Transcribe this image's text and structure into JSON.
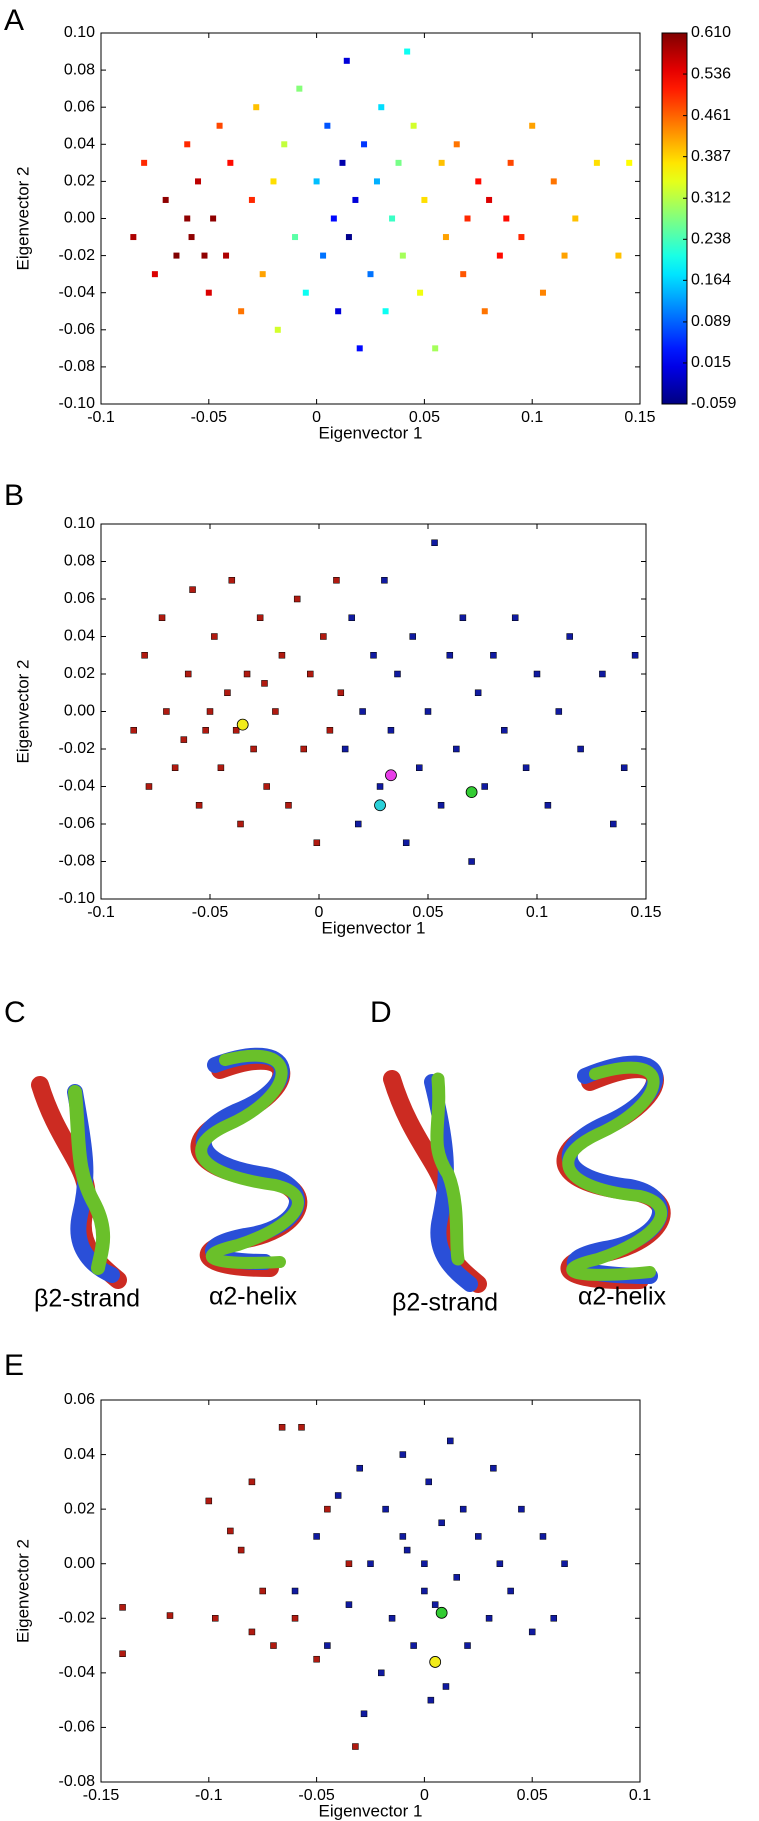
{
  "chart_data": [
    {
      "type": "scatter",
      "panel_label": "A",
      "xlabel": "Eigenvector 1",
      "ylabel": "Eigenvector 2",
      "xlim": [
        -0.1,
        0.15
      ],
      "ylim": [
        -0.1,
        0.1
      ],
      "xticks": [
        -0.1,
        -0.05,
        0,
        0.05,
        0.1,
        0.15
      ],
      "yticks": [
        {
          "value": 0.1,
          "label": "0.10"
        },
        {
          "value": 0.08,
          "label": "0.08"
        },
        {
          "value": 0.06,
          "label": "0.06"
        },
        {
          "value": 0.04,
          "label": "0.04"
        },
        {
          "value": 0.02,
          "label": "0.02"
        },
        {
          "value": 0,
          "label": "0.00"
        },
        {
          "value": -0.02,
          "label": "-0.02"
        },
        {
          "value": -0.04,
          "label": "-0.04"
        },
        {
          "value": -0.06,
          "label": "-0.06"
        },
        {
          "value": -0.08,
          "label": "-0.08"
        },
        {
          "value": -0.1,
          "label": "-0.10"
        }
      ],
      "colormap": "jet",
      "clim": [
        -0.059,
        0.61
      ],
      "cticks": [
        {
          "value": 0.61,
          "label": "0.610"
        },
        0.536,
        0.461,
        0.387,
        0.312,
        0.238,
        0.164,
        0.089,
        0.015,
        -0.059
      ],
      "series": [
        {
          "marker": "square",
          "x": [
            -0.085,
            -0.08,
            -0.075,
            -0.07,
            -0.065,
            -0.06,
            -0.058,
            -0.055,
            -0.05,
            -0.048,
            -0.045,
            -0.042,
            -0.04,
            -0.035,
            -0.03,
            -0.028,
            -0.025,
            -0.02,
            -0.018,
            -0.015,
            -0.01,
            -0.008,
            -0.005,
            0,
            0.003,
            0.005,
            0.008,
            0.01,
            0.012,
            0.014,
            0.015,
            0.018,
            0.02,
            0.022,
            0.025,
            0.028,
            0.03,
            0.032,
            0.035,
            0.038,
            0.04,
            0.042,
            0.045,
            0.048,
            0.05,
            0.055,
            0.058,
            0.06,
            0.065,
            0.068,
            0.07,
            0.075,
            0.078,
            0.08,
            0.085,
            0.09,
            0.095,
            0.1,
            0.105,
            0.11,
            0.115,
            0.12,
            0.13,
            0.14,
            0.145,
            -0.052,
            -0.06,
            0.088
          ],
          "values": [
            -0.01,
            0.03,
            -0.03,
            0.01,
            -0.02,
            0.04,
            -0.01,
            0.02,
            -0.04,
            0,
            0.05,
            -0.02,
            0.03,
            -0.05,
            0.01,
            0.06,
            -0.03,
            0.02,
            -0.06,
            0.04,
            -0.01,
            0.07,
            -0.04,
            0.02,
            -0.02,
            0.05,
            0,
            -0.05,
            0.03,
            0.085,
            -0.01,
            0.01,
            -0.07,
            0.04,
            -0.03,
            0.02,
            0.06,
            -0.05,
            0,
            0.03,
            -0.02,
            0.09,
            0.05,
            -0.04,
            0.01,
            -0.07,
            0.03,
            -0.01,
            0.04,
            -0.03,
            0,
            0.02,
            -0.05,
            0.01,
            -0.02,
            0.03,
            -0.01,
            0.05,
            -0.04,
            0.02,
            -0.02,
            0,
            0.03,
            -0.02,
            0.03,
            -0.02,
            0,
            0
          ],
          "colors": [
            0.58,
            0.5,
            0.55,
            0.6,
            0.61,
            0.5,
            0.6,
            0.57,
            0.55,
            0.6,
            0.48,
            0.58,
            0.52,
            0.45,
            0.5,
            0.4,
            0.42,
            0.38,
            0.33,
            0.32,
            0.25,
            0.28,
            0.2,
            0.15,
            0.1,
            0.08,
            0.03,
            0,
            -0.03,
            0,
            -0.05,
            0,
            0.03,
            0.06,
            0.1,
            0.14,
            0.17,
            0.2,
            0.23,
            0.27,
            0.3,
            0.2,
            0.33,
            0.35,
            0.38,
            0.3,
            0.4,
            0.42,
            0.45,
            0.47,
            0.5,
            0.52,
            0.45,
            0.55,
            0.52,
            0.48,
            0.5,
            0.42,
            0.44,
            0.45,
            0.42,
            0.4,
            0.38,
            0.4,
            0.36,
            0.6,
            0.6,
            0.52
          ]
        }
      ]
    },
    {
      "type": "scatter",
      "panel_label": "B",
      "xlabel": "Eigenvector 1",
      "ylabel": "Eigenvector 2",
      "xlim": [
        -0.1,
        0.15
      ],
      "ylim": [
        -0.1,
        0.1
      ],
      "xticks": [
        -0.1,
        -0.05,
        0,
        0.05,
        0.1,
        0.15
      ],
      "yticks": [
        {
          "value": 0.1,
          "label": "0.10"
        },
        {
          "value": 0.08,
          "label": "0.08"
        },
        {
          "value": 0.06,
          "label": "0.06"
        },
        {
          "value": 0.04,
          "label": "0.04"
        },
        {
          "value": 0.02,
          "label": "0.02"
        },
        {
          "value": 0,
          "label": "0.00"
        },
        {
          "value": -0.02,
          "label": "-0.02"
        },
        {
          "value": -0.04,
          "label": "-0.04"
        },
        {
          "value": -0.06,
          "label": "-0.06"
        },
        {
          "value": -0.08,
          "label": "-0.08"
        },
        {
          "value": -0.1,
          "label": "-0.10"
        }
      ],
      "series": [
        {
          "marker": "square",
          "color": "#b01a10",
          "x": [
            -0.085,
            -0.08,
            -0.078,
            -0.072,
            -0.07,
            -0.066,
            -0.06,
            -0.058,
            -0.055,
            -0.052,
            -0.048,
            -0.045,
            -0.042,
            -0.04,
            -0.036,
            -0.033,
            -0.03,
            -0.027,
            -0.024,
            -0.02,
            -0.017,
            -0.014,
            -0.01,
            -0.007,
            -0.004,
            -0.001,
            0.002,
            0.005,
            0.008,
            0.01,
            -0.05,
            -0.062,
            -0.038,
            -0.025
          ],
          "values": [
            -0.01,
            0.03,
            -0.04,
            0.05,
            0,
            -0.03,
            0.02,
            0.065,
            -0.05,
            -0.01,
            0.04,
            -0.03,
            0.01,
            0.07,
            -0.06,
            0.02,
            -0.02,
            0.05,
            -0.04,
            0,
            0.03,
            -0.05,
            0.06,
            -0.02,
            0.02,
            -0.07,
            0.04,
            -0.01,
            0.07,
            0.01,
            0,
            -0.015,
            -0.01,
            0.015
          ]
        },
        {
          "marker": "square",
          "color": "#101aa0",
          "x": [
            0.012,
            0.015,
            0.018,
            0.02,
            0.025,
            0.028,
            0.03,
            0.033,
            0.036,
            0.04,
            0.043,
            0.046,
            0.05,
            0.053,
            0.056,
            0.06,
            0.063,
            0.066,
            0.07,
            0.073,
            0.076,
            0.08,
            0.085,
            0.09,
            0.095,
            0.1,
            0.105,
            0.11,
            0.115,
            0.12,
            0.13,
            0.14,
            0.145,
            0.135
          ],
          "values": [
            -0.02,
            0.05,
            -0.06,
            0,
            0.03,
            -0.04,
            0.07,
            -0.01,
            0.02,
            -0.07,
            0.04,
            -0.03,
            0,
            0.09,
            -0.05,
            0.03,
            -0.02,
            0.05,
            -0.08,
            0.01,
            -0.04,
            0.03,
            -0.01,
            0.05,
            -0.03,
            0.02,
            -0.05,
            0,
            0.04,
            -0.02,
            0.02,
            -0.03,
            0.03,
            -0.06
          ]
        },
        {
          "marker": "circle",
          "color": "#f2ec1a",
          "x": [
            -0.035
          ],
          "values": [
            -0.007
          ]
        },
        {
          "marker": "circle",
          "color": "#e83ee8",
          "x": [
            0.033
          ],
          "values": [
            -0.034
          ]
        },
        {
          "marker": "circle",
          "color": "#2ad0d8",
          "x": [
            0.028
          ],
          "values": [
            -0.05
          ]
        },
        {
          "marker": "circle",
          "color": "#33cc33",
          "x": [
            0.07
          ],
          "values": [
            -0.043
          ]
        }
      ]
    },
    {
      "type": "scatter",
      "panel_label": "E",
      "xlabel": "Eigenvector 1",
      "ylabel": "Eigenvector 2",
      "xlim": [
        -0.15,
        0.1
      ],
      "ylim": [
        -0.08,
        0.06
      ],
      "xticks": [
        -0.15,
        -0.1,
        -0.05,
        0,
        0.05,
        0.1
      ],
      "yticks": [
        {
          "value": 0.06,
          "label": "0.06"
        },
        {
          "value": 0.04,
          "label": "0.04"
        },
        {
          "value": 0.02,
          "label": "0.02"
        },
        {
          "value": 0,
          "label": "0.00"
        },
        {
          "value": -0.02,
          "label": "-0.02"
        },
        {
          "value": -0.04,
          "label": "-0.04"
        },
        {
          "value": -0.06,
          "label": "-0.06"
        },
        {
          "value": -0.08,
          "label": "-0.08"
        }
      ],
      "series": [
        {
          "marker": "square",
          "color": "#b01a10",
          "x": [
            -0.14,
            -0.14,
            -0.118,
            -0.1,
            -0.097,
            -0.09,
            -0.085,
            -0.08,
            -0.08,
            -0.075,
            -0.07,
            -0.066,
            -0.057,
            -0.06,
            -0.05,
            -0.045,
            -0.035,
            -0.032
          ],
          "values": [
            -0.016,
            -0.033,
            -0.019,
            0.023,
            -0.02,
            0.012,
            0.005,
            0.03,
            -0.025,
            -0.01,
            -0.03,
            0.05,
            0.05,
            -0.02,
            -0.035,
            0.02,
            0,
            -0.067
          ]
        },
        {
          "marker": "square",
          "color": "#101aa0",
          "x": [
            -0.06,
            -0.05,
            -0.045,
            -0.04,
            -0.035,
            -0.03,
            -0.025,
            -0.02,
            -0.018,
            -0.015,
            -0.01,
            -0.008,
            -0.005,
            0,
            0.002,
            0.005,
            0.008,
            0.01,
            0.012,
            0.015,
            0.018,
            0.02,
            0.025,
            0.03,
            0.032,
            0.035,
            0.04,
            0.045,
            0.05,
            0.055,
            0.06,
            0.065,
            -0.028,
            0.003,
            -0.01,
            0
          ],
          "values": [
            -0.01,
            0.01,
            -0.03,
            0.025,
            -0.015,
            0.035,
            0,
            -0.04,
            0.02,
            -0.02,
            0.04,
            0.005,
            -0.03,
            0,
            0.03,
            -0.015,
            0.015,
            -0.045,
            0.045,
            -0.005,
            0.02,
            -0.03,
            0.01,
            -0.02,
            0.035,
            0,
            -0.01,
            0.02,
            -0.025,
            0.01,
            -0.02,
            0,
            -0.055,
            -0.05,
            0.01,
            -0.01
          ]
        },
        {
          "marker": "circle",
          "color": "#33cc33",
          "x": [
            0.008
          ],
          "values": [
            -0.018
          ]
        },
        {
          "marker": "circle",
          "color": "#f2ec1a",
          "x": [
            0.005
          ],
          "values": [
            -0.036
          ]
        }
      ]
    }
  ],
  "figures": [
    {
      "panel_label": "C",
      "labels": [
        "β2-strand",
        "α2-helix"
      ]
    },
    {
      "panel_label": "D",
      "labels": [
        "β2-strand",
        "α2-helix"
      ]
    }
  ]
}
